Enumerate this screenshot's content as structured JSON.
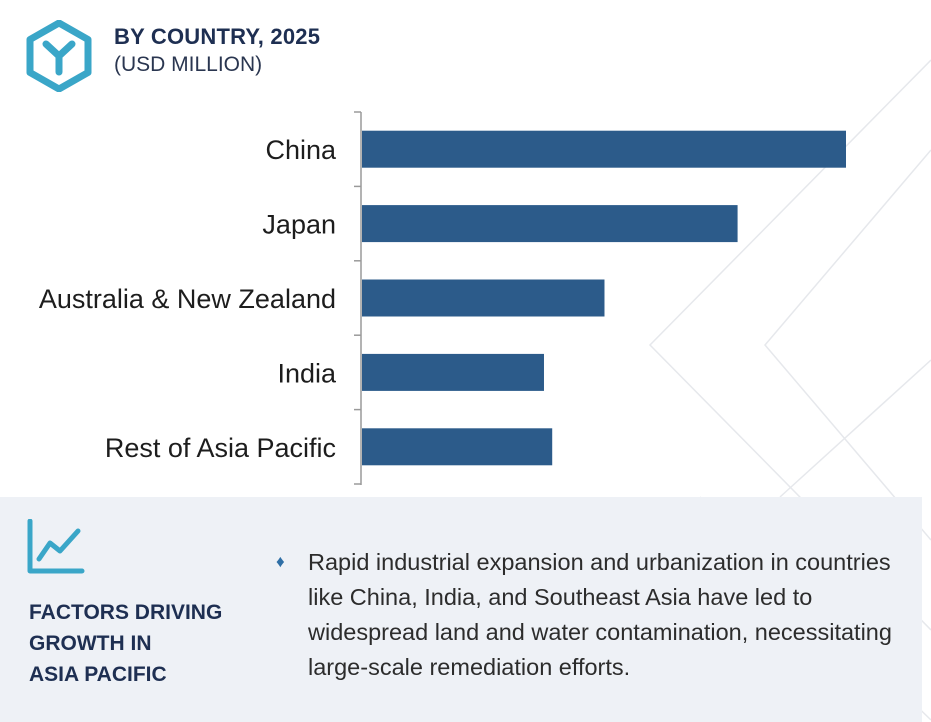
{
  "header": {
    "title": "BY COUNTRY, 2025",
    "subtitle": "(USD MILLION)",
    "logo_icon": "hexagon-y-logo-icon"
  },
  "colors": {
    "bar": "#2c5b8a",
    "accent": "#3aa6c8",
    "title": "#1e2f52",
    "footer_bg": "#eef1f6"
  },
  "chart_data": {
    "type": "bar",
    "orientation": "horizontal",
    "title": "BY COUNTRY, 2025",
    "subtitle": "(USD MILLION)",
    "categories": [
      "China",
      "Japan",
      "Australia & New Zealand",
      "India",
      "Rest of Asia Pacific"
    ],
    "values": [
      100,
      77.6,
      50.1,
      37.6,
      39.3
    ],
    "xlim": [
      0,
      100
    ],
    "axis_labels_shown": false,
    "grid": false,
    "legend": "none"
  },
  "footer": {
    "icon": "growth-chart-icon",
    "title_lines": [
      "FACTORS DRIVING",
      "GROWTH IN",
      "ASIA PACIFIC"
    ],
    "bullet_icon": "diamond-bullet-icon",
    "bullet_char": "♦",
    "text": "Rapid industrial expansion and urbanization in countries like China, India, and Southeast Asia have led to widespread land and water contamination, necessitating large-scale remediation efforts."
  }
}
